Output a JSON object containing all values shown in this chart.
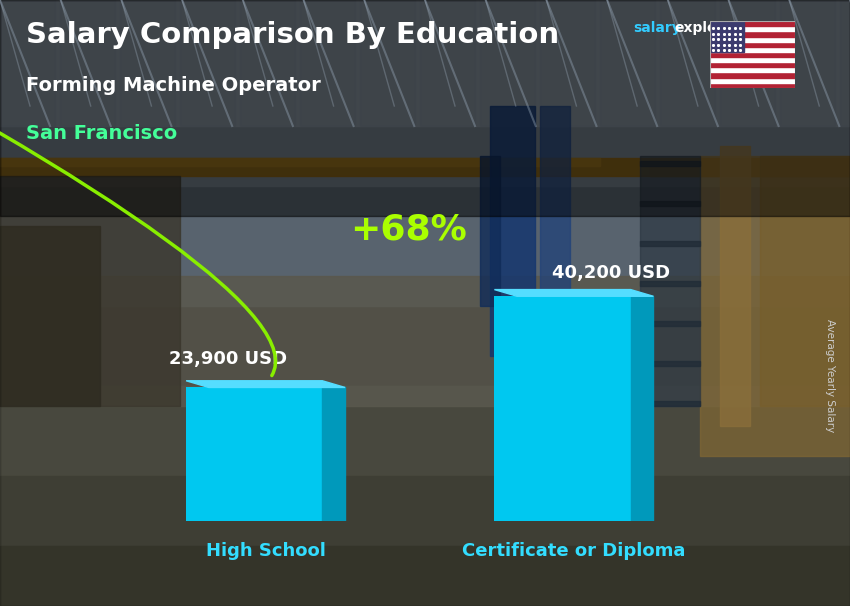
{
  "title": "Salary Comparison By Education",
  "subtitle": "Forming Machine Operator",
  "location": "San Francisco",
  "ylabel": "Average Yearly Salary",
  "categories": [
    "High School",
    "Certificate or Diploma"
  ],
  "values": [
    23900,
    40200
  ],
  "value_labels": [
    "23,900 USD",
    "40,200 USD"
  ],
  "pct_change": "+68%",
  "bar_color_face": "#00C8F0",
  "bar_color_side": "#0099BB",
  "bar_color_top": "#55DDFF",
  "title_color": "#FFFFFF",
  "subtitle_color": "#FFFFFF",
  "location_color": "#44FF99",
  "value_color": "#FFFFFF",
  "category_color": "#33DDFF",
  "pct_color": "#AAFF00",
  "arrow_color": "#88EE00",
  "brand_color_salary": "#33CCFF",
  "brand_color_explorer": "#FFFFFF",
  "brand_color_com": "#33CCFF",
  "ylim": [
    0,
    50000
  ],
  "fig_width": 8.5,
  "fig_height": 6.06
}
